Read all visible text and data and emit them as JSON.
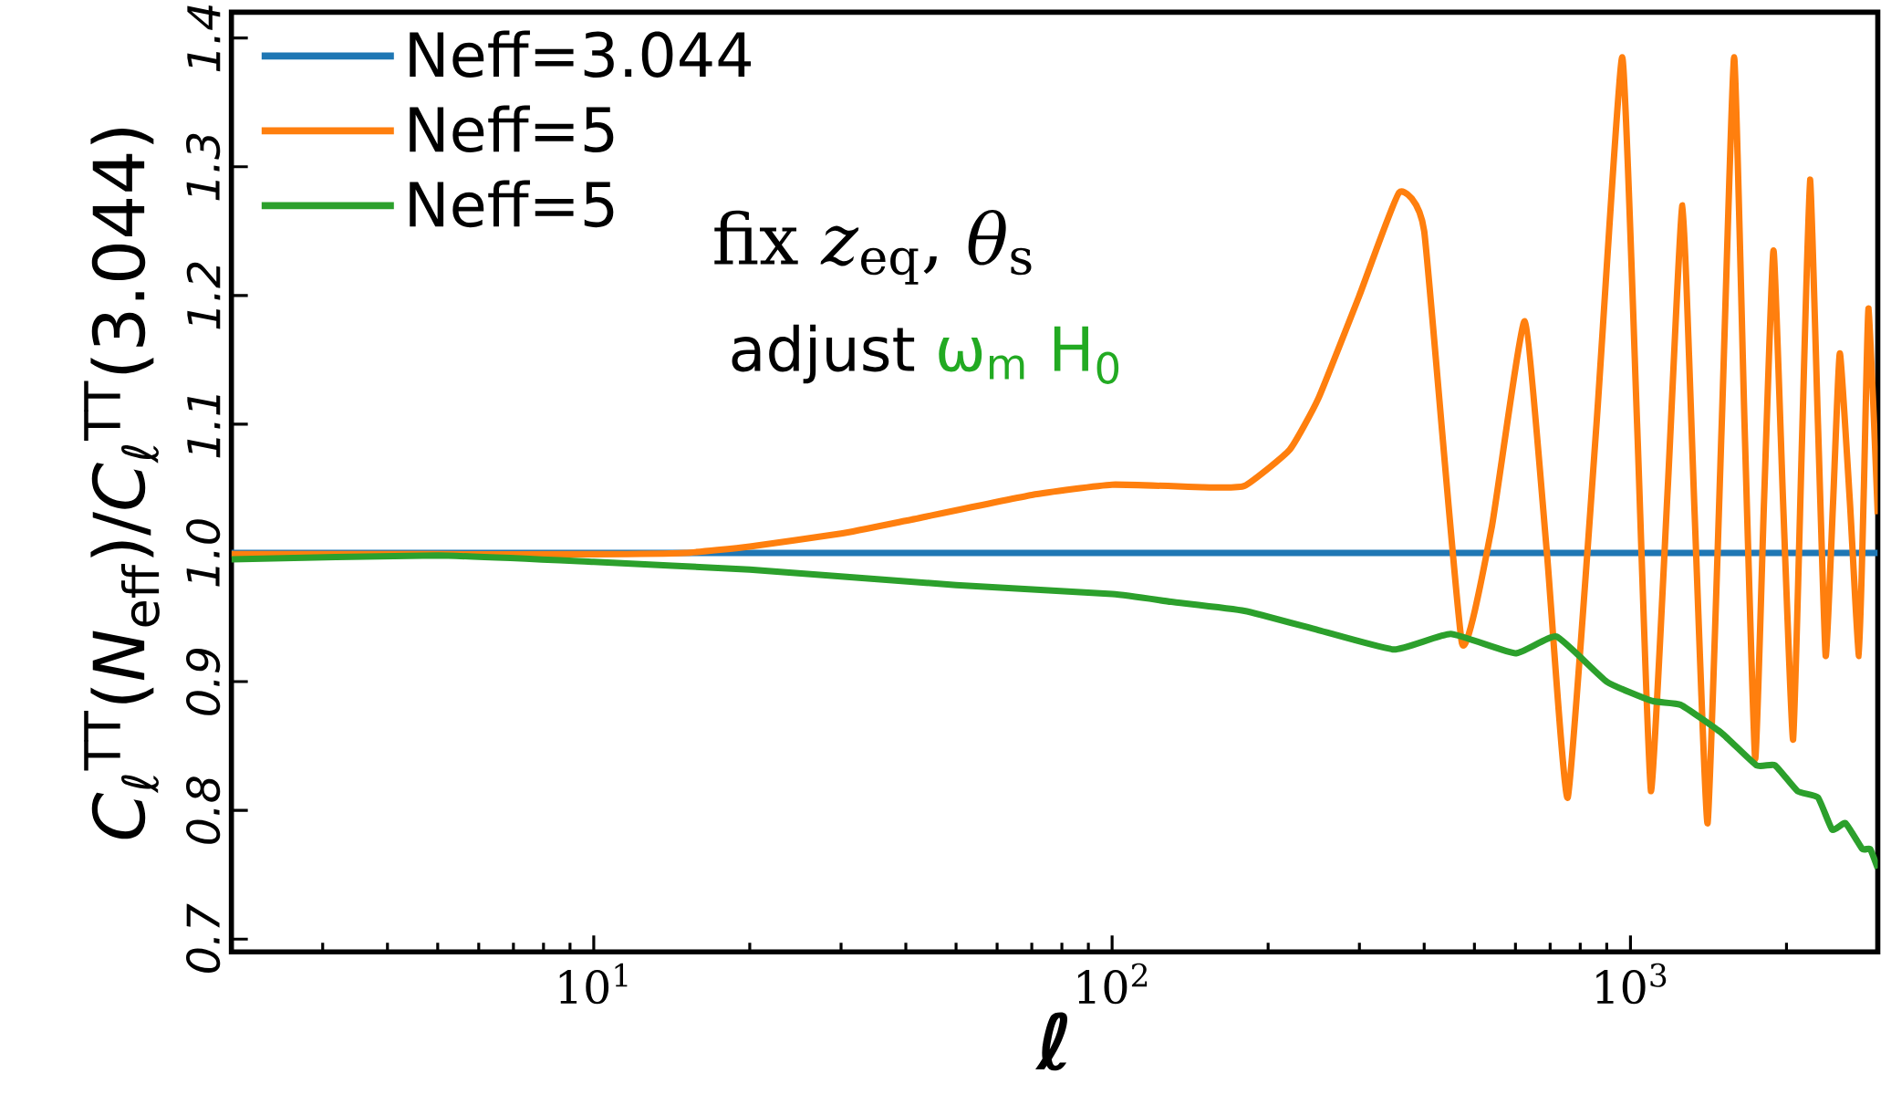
{
  "chart_data": {
    "type": "line",
    "xlabel": "ℓ",
    "ylabel": "*C*$_{ℓ}$$^{TT}$(*N*$_{eff}$)/*C*$_{ℓ}$$^{TT}$(3.044)",
    "annotations": [
      "fix *z*$_{eq}$, *θ*$_{s}$",
      "adjust",
      "ω$_{m}$ H$_{0}$"
    ],
    "log": "x",
    "xlim": [
      2,
      3000
    ],
    "ylim": [
      0.69,
      1.42
    ],
    "xticks": [
      {
        "value": 10,
        "label": "10$^{1}$"
      },
      {
        "value": 100,
        "label": "10$^{2}$"
      },
      {
        "value": 1000,
        "label": "10$^{3}$"
      }
    ],
    "yticks": [
      {
        "value": 0.7,
        "label": "0.7"
      },
      {
        "value": 0.8,
        "label": "0.8"
      },
      {
        "value": 0.9,
        "label": "0.9"
      },
      {
        "value": 1,
        "label": "1.0"
      },
      {
        "value": 1.1,
        "label": "1.1"
      },
      {
        "value": 1.2,
        "label": "1.2"
      },
      {
        "value": 1.3,
        "label": "1.3"
      },
      {
        "value": 1.4,
        "label": "1.4"
      }
    ],
    "legend": "top left",
    "grid": false,
    "series": [
      {
        "name": "Neff=3.044",
        "color": "#1f77b4",
        "x": [
          2,
          3000
        ],
        "values": [
          1.0,
          1.0
        ]
      },
      {
        "name": "Neff=5",
        "color": "#ff7f0e",
        "x": [
          2,
          5,
          10,
          15,
          20,
          30,
          40,
          70,
          100,
          150,
          180,
          220,
          250,
          300,
          358,
          400,
          473,
          540,
          625,
          690,
          757,
          860,
          964,
          1030,
          1095,
          1180,
          1260,
          1330,
          1409,
          1500,
          1585,
          1660,
          1740,
          1810,
          1888,
          1970,
          2060,
          2140,
          2220,
          2300,
          2380,
          2460,
          2535,
          2650,
          2760,
          2820,
          2880,
          3000
        ],
        "values": [
          0.999,
          0.999,
          0.999,
          1.0,
          1.005,
          1.015,
          1.025,
          1.045,
          1.053,
          1.051,
          1.052,
          1.08,
          1.12,
          1.2,
          1.28,
          1.25,
          0.93,
          1.02,
          1.18,
          1.0,
          0.81,
          1.1,
          1.385,
          1.1,
          0.815,
          1.05,
          1.27,
          1.03,
          0.79,
          1.1,
          1.385,
          1.1,
          0.84,
          1.04,
          1.235,
          1.04,
          0.855,
          1.08,
          1.29,
          1.1,
          0.92,
          1.04,
          1.155,
          1.04,
          0.92,
          1.05,
          1.19,
          1.03
        ]
      },
      {
        "name": "Neff=5",
        "color": "#2ca02c",
        "x": [
          2,
          5,
          10,
          20,
          50,
          100,
          130,
          180,
          250,
          350,
          450,
          600,
          720,
          900,
          1100,
          1250,
          1500,
          1750,
          1900,
          2100,
          2300,
          2450,
          2600,
          2800,
          2900,
          3000
        ],
        "values": [
          0.995,
          0.998,
          0.993,
          0.987,
          0.975,
          0.968,
          0.962,
          0.955,
          0.94,
          0.925,
          0.937,
          0.922,
          0.935,
          0.9,
          0.885,
          0.882,
          0.86,
          0.835,
          0.835,
          0.815,
          0.81,
          0.785,
          0.79,
          0.77,
          0.77,
          0.755
        ]
      }
    ]
  }
}
